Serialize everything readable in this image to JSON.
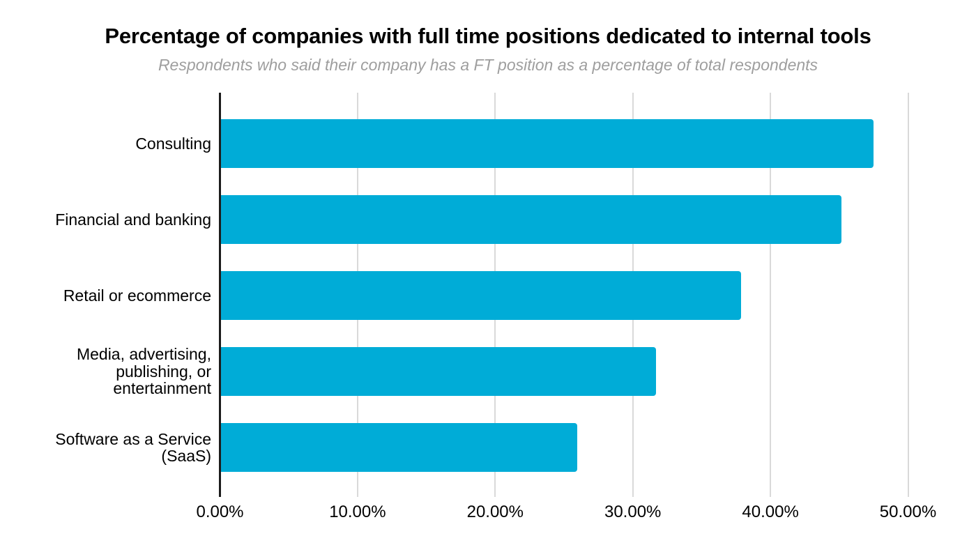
{
  "chart_data": {
    "type": "bar",
    "orientation": "horizontal",
    "title": "Percentage of companies with full time positions dedicated to internal tools",
    "subtitle": "Respondents who said their company has a FT position as a percentage of total respondents",
    "categories": [
      "Consulting",
      "Financial and banking",
      "Retail or ecommerce",
      "Media, advertising, publishing, or entertainment",
      "Software as a Service (SaaS)"
    ],
    "values": [
      47.4,
      45.1,
      37.8,
      31.6,
      25.9
    ],
    "unit": "%",
    "xlabel": "",
    "ylabel": "",
    "x_axis": {
      "min": 0,
      "max": 50,
      "tick_values": [
        0,
        10,
        20,
        30,
        40,
        50
      ],
      "tick_labels": [
        "0.00%",
        "10.00%",
        "20.00%",
        "30.00%",
        "40.00%",
        "50.00%"
      ]
    },
    "grid": true,
    "legend": false,
    "colors": {
      "bar": "#00ACD7",
      "gridline": "#d9d9d9",
      "axis_line": "#1c1c1c",
      "title": "#000000",
      "subtitle": "#9e9e9e",
      "label": "#000000"
    }
  }
}
